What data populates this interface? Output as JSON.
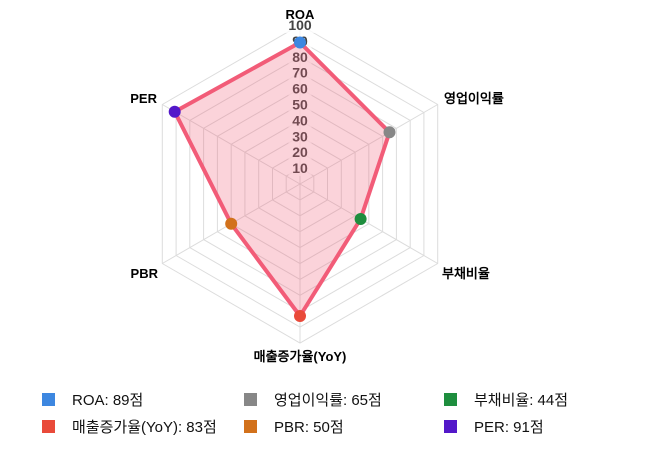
{
  "chart_data": {
    "type": "radar",
    "axes": [
      "ROA",
      "영업이익률",
      "부채비율",
      "매출증가율(YoY)",
      "PBR",
      "PER"
    ],
    "values": [
      89,
      65,
      44,
      83,
      50,
      91
    ],
    "point_colors": [
      "#3d87e0",
      "#878787",
      "#1e8e3e",
      "#e94a3a",
      "#d2711b",
      "#5318c9"
    ],
    "scale": {
      "min": 0,
      "max": 100,
      "step": 10
    },
    "tick_labels": [
      "10",
      "20",
      "30",
      "40",
      "50",
      "60",
      "70",
      "80",
      "90",
      "100"
    ],
    "series_stroke": "#f25c78",
    "series_fill": "rgba(242,92,120,0.27)",
    "grid_color": "#dcdcdc",
    "tick_color": "#444444",
    "tick_backdrop": "rgba(255,255,255,0.75)",
    "axis_label_color": "#000000",
    "legend_position": "bottom",
    "grid": "on"
  },
  "legend": {
    "items": [
      {
        "label": "ROA: 89점",
        "color": "#3d87e0"
      },
      {
        "label": "영업이익률: 65점",
        "color": "#878787"
      },
      {
        "label": "부채비율: 44점",
        "color": "#1e8e3e"
      },
      {
        "label": "매출증가율(YoY): 83점",
        "color": "#e94a3a"
      },
      {
        "label": "PBR: 50점",
        "color": "#d2711b"
      },
      {
        "label": "PER: 91점",
        "color": "#5318c9"
      }
    ]
  }
}
